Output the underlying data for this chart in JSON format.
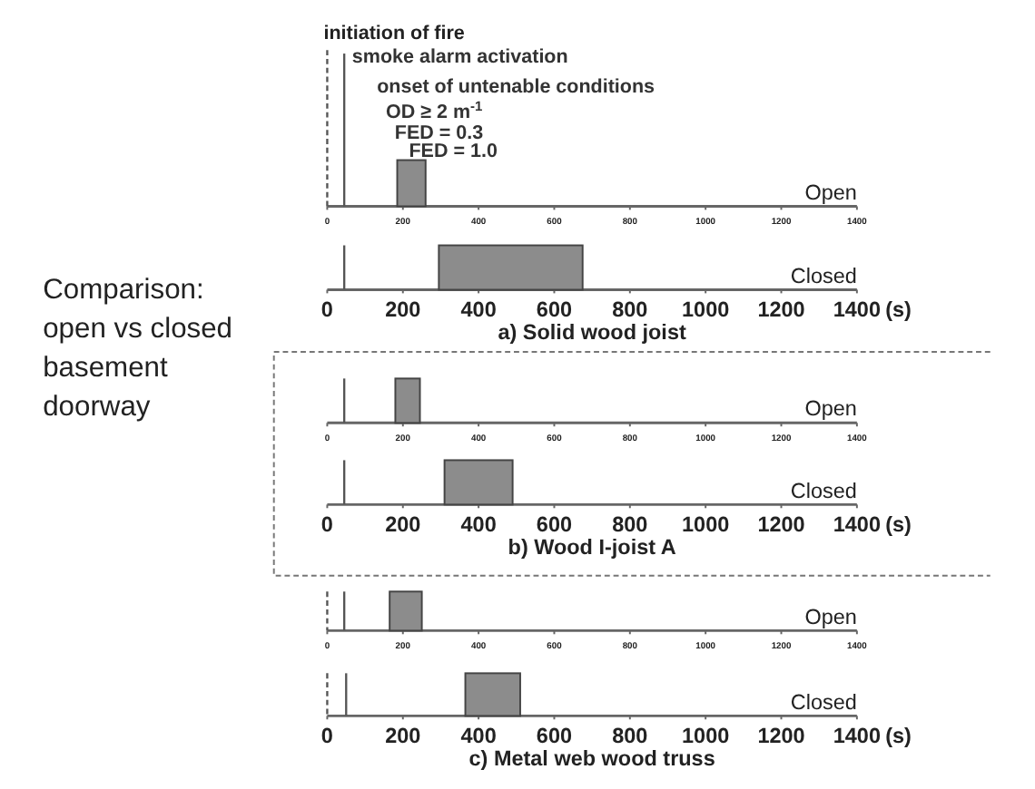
{
  "chart_data": [
    {
      "type": "bar",
      "orientation": "horizontal",
      "categories": [
        "Open"
      ],
      "base": [
        185
      ],
      "values": [
        75
      ],
      "color": "#8c8c8c",
      "xlim": [
        0,
        1400
      ],
      "xticks": [
        0,
        200,
        400,
        600,
        800,
        1000,
        1200,
        1400
      ],
      "ref_lines": [
        {
          "axis": "x",
          "value": 0,
          "line_style": "dashed",
          "color": "#555555"
        },
        {
          "axis": "x",
          "value": 45,
          "line_style": "solid",
          "color": "#555555"
        }
      ],
      "annotations": [
        "initiation of fire",
        "smoke alarm activation",
        "onset of untenable conditions",
        "OD ≥ 2 m$^{-1}$",
        "FED = 0.3",
        "FED = 1.0",
        "Comparison: open vs closed basement doorway"
      ]
    },
    {
      "type": "bar",
      "orientation": "horizontal",
      "categories": [
        "Closed"
      ],
      "base": [
        295
      ],
      "values": [
        380
      ],
      "color": "#8c8c8c",
      "xlim": [
        0,
        1400
      ],
      "xticks": [
        0,
        200,
        400,
        600,
        800,
        1000,
        1200,
        1400
      ],
      "ref_lines": [
        {
          "axis": "x",
          "value": 45,
          "line_style": "solid",
          "color": "#555555"
        }
      ],
      "xlabel": "(s)",
      "title": "a) Solid wood joist"
    },
    {
      "type": "bar",
      "orientation": "horizontal",
      "categories": [
        "Open"
      ],
      "base": [
        180
      ],
      "values": [
        65
      ],
      "color": "#8c8c8c",
      "xlim": [
        0,
        1400
      ],
      "xticks": [
        0,
        200,
        400,
        600,
        800,
        1000,
        1200,
        1400
      ],
      "ref_lines": [
        {
          "axis": "x",
          "value": 45,
          "line_style": "solid",
          "color": "#555555"
        }
      ]
    },
    {
      "type": "bar",
      "orientation": "horizontal",
      "categories": [
        "Closed"
      ],
      "base": [
        310
      ],
      "values": [
        180
      ],
      "color": "#8c8c8c",
      "xlim": [
        0,
        1400
      ],
      "xticks": [
        0,
        200,
        400,
        600,
        800,
        1000,
        1200,
        1400
      ],
      "ref_lines": [
        {
          "axis": "x",
          "value": 45,
          "line_style": "solid",
          "color": "#555555"
        }
      ],
      "xlabel": "(s)",
      "title": "b) Wood I-joist A"
    },
    {
      "type": "bar",
      "orientation": "horizontal",
      "categories": [
        "Open"
      ],
      "base": [
        165
      ],
      "values": [
        85
      ],
      "color": "#8c8c8c",
      "xlim": [
        0,
        1400
      ],
      "xticks": [
        0,
        200,
        400,
        600,
        800,
        1000,
        1200,
        1400
      ],
      "ref_lines": [
        {
          "axis": "x",
          "value": 0,
          "line_style": "dashed",
          "color": "#555555"
        },
        {
          "axis": "x",
          "value": 45,
          "line_style": "solid",
          "color": "#555555"
        }
      ]
    },
    {
      "type": "bar",
      "orientation": "horizontal",
      "categories": [
        "Closed"
      ],
      "base": [
        365
      ],
      "values": [
        145
      ],
      "color": "#8c8c8c",
      "xlim": [
        0,
        1400
      ],
      "xticks": [
        0,
        200,
        400,
        600,
        800,
        1000,
        1200,
        1400
      ],
      "ref_lines": [
        {
          "axis": "x",
          "value": 0,
          "line_style": "dashed",
          "color": "#555555"
        },
        {
          "axis": "x",
          "value": 50,
          "line_style": "solid",
          "color": "#555555"
        }
      ],
      "xlabel": "(s)",
      "title": "c) Metal web wood truss"
    }
  ]
}
